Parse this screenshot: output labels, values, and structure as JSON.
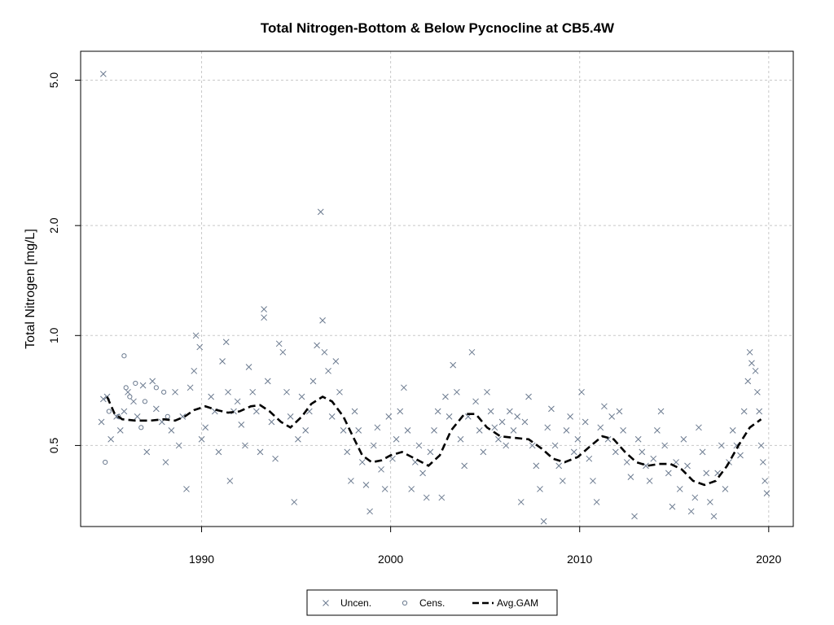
{
  "chart_data": {
    "type": "scatter",
    "title": "Total Nitrogen-Bottom & Below Pycnocline at CB5.4W",
    "xlabel": "",
    "ylabel": "Total Nitrogen [mg/L]",
    "y_scale": "log",
    "xlim": [
      1983.6,
      2021.3
    ],
    "ylim": [
      0.3,
      6.0
    ],
    "x_ticks": [
      1990,
      2000,
      2010,
      2020
    ],
    "y_ticks": [
      0.5,
      1.0,
      2.0,
      5.0
    ],
    "y_tick_labels": [
      "0.5",
      "1.0",
      "2.0",
      "5.0"
    ],
    "grid": true,
    "legend_position": "bottom-center",
    "legend": [
      "Uncen.",
      "Cens.",
      "Avg.GAM"
    ],
    "colors": {
      "points": "#6b7a8f",
      "line": "#000000",
      "grid": "#c8c8c8"
    },
    "series": [
      {
        "name": "Uncen.",
        "marker": "x",
        "points": [
          [
            1984.8,
            5.2
          ],
          [
            1984.8,
            0.67
          ],
          [
            1984.7,
            0.58
          ],
          [
            1985.0,
            0.68
          ],
          [
            1985.2,
            0.52
          ],
          [
            1985.5,
            0.6
          ],
          [
            1985.7,
            0.55
          ],
          [
            1985.9,
            0.62
          ],
          [
            1986.1,
            0.7
          ],
          [
            1986.4,
            0.66
          ],
          [
            1986.6,
            0.6
          ],
          [
            1986.9,
            0.73
          ],
          [
            1987.1,
            0.48
          ],
          [
            1987.4,
            0.75
          ],
          [
            1987.6,
            0.63
          ],
          [
            1987.9,
            0.58
          ],
          [
            1988.1,
            0.45
          ],
          [
            1988.4,
            0.55
          ],
          [
            1988.6,
            0.7
          ],
          [
            1988.8,
            0.5
          ],
          [
            1989.0,
            0.6
          ],
          [
            1989.2,
            0.38
          ],
          [
            1989.4,
            0.72
          ],
          [
            1989.6,
            0.8
          ],
          [
            1989.7,
            1.0
          ],
          [
            1989.9,
            0.93
          ],
          [
            1990.0,
            0.52
          ],
          [
            1990.2,
            0.56
          ],
          [
            1990.5,
            0.68
          ],
          [
            1990.7,
            0.62
          ],
          [
            1990.9,
            0.48
          ],
          [
            1991.1,
            0.85
          ],
          [
            1991.3,
            0.96
          ],
          [
            1991.4,
            0.7
          ],
          [
            1991.5,
            0.4
          ],
          [
            1991.7,
            0.62
          ],
          [
            1991.9,
            0.66
          ],
          [
            1992.1,
            0.57
          ],
          [
            1992.3,
            0.5
          ],
          [
            1992.5,
            0.82
          ],
          [
            1992.7,
            0.7
          ],
          [
            1992.9,
            0.62
          ],
          [
            1993.1,
            0.48
          ],
          [
            1993.3,
            1.18
          ],
          [
            1993.3,
            1.12
          ],
          [
            1993.5,
            0.75
          ],
          [
            1993.7,
            0.58
          ],
          [
            1993.9,
            0.46
          ],
          [
            1994.1,
            0.95
          ],
          [
            1994.3,
            0.9
          ],
          [
            1994.5,
            0.7
          ],
          [
            1994.7,
            0.6
          ],
          [
            1994.9,
            0.35
          ],
          [
            1995.1,
            0.52
          ],
          [
            1995.3,
            0.68
          ],
          [
            1995.5,
            0.55
          ],
          [
            1995.7,
            0.62
          ],
          [
            1995.9,
            0.75
          ],
          [
            1996.1,
            0.94
          ],
          [
            1996.3,
            2.18
          ],
          [
            1996.4,
            1.1
          ],
          [
            1996.5,
            0.9
          ],
          [
            1996.7,
            0.8
          ],
          [
            1996.9,
            0.6
          ],
          [
            1997.1,
            0.85
          ],
          [
            1997.3,
            0.7
          ],
          [
            1997.5,
            0.55
          ],
          [
            1997.7,
            0.48
          ],
          [
            1997.9,
            0.4
          ],
          [
            1998.1,
            0.62
          ],
          [
            1998.3,
            0.55
          ],
          [
            1998.5,
            0.45
          ],
          [
            1998.7,
            0.39
          ],
          [
            1998.9,
            0.33
          ],
          [
            1999.1,
            0.5
          ],
          [
            1999.3,
            0.56
          ],
          [
            1999.5,
            0.43
          ],
          [
            1999.7,
            0.38
          ],
          [
            1999.9,
            0.6
          ],
          [
            2000.1,
            0.46
          ],
          [
            2000.3,
            0.52
          ],
          [
            2000.5,
            0.62
          ],
          [
            2000.7,
            0.72
          ],
          [
            2000.9,
            0.55
          ],
          [
            2001.1,
            0.38
          ],
          [
            2001.3,
            0.45
          ],
          [
            2001.5,
            0.5
          ],
          [
            2001.7,
            0.42
          ],
          [
            2001.9,
            0.36
          ],
          [
            2002.1,
            0.48
          ],
          [
            2002.3,
            0.55
          ],
          [
            2002.5,
            0.62
          ],
          [
            2002.7,
            0.36
          ],
          [
            2002.9,
            0.68
          ],
          [
            2003.1,
            0.6
          ],
          [
            2003.3,
            0.83
          ],
          [
            2003.5,
            0.7
          ],
          [
            2003.7,
            0.52
          ],
          [
            2003.9,
            0.44
          ],
          [
            2004.1,
            0.6
          ],
          [
            2004.3,
            0.9
          ],
          [
            2004.5,
            0.66
          ],
          [
            2004.7,
            0.55
          ],
          [
            2004.9,
            0.48
          ],
          [
            2005.1,
            0.7
          ],
          [
            2005.3,
            0.62
          ],
          [
            2005.5,
            0.56
          ],
          [
            2005.7,
            0.52
          ],
          [
            2005.9,
            0.58
          ],
          [
            2006.1,
            0.5
          ],
          [
            2006.3,
            0.62
          ],
          [
            2006.5,
            0.55
          ],
          [
            2006.7,
            0.6
          ],
          [
            2006.9,
            0.35
          ],
          [
            2007.1,
            0.58
          ],
          [
            2007.3,
            0.68
          ],
          [
            2007.5,
            0.5
          ],
          [
            2007.7,
            0.44
          ],
          [
            2007.9,
            0.38
          ],
          [
            2008.1,
            0.31
          ],
          [
            2008.3,
            0.56
          ],
          [
            2008.5,
            0.63
          ],
          [
            2008.7,
            0.5
          ],
          [
            2008.9,
            0.44
          ],
          [
            2009.1,
            0.4
          ],
          [
            2009.3,
            0.55
          ],
          [
            2009.5,
            0.6
          ],
          [
            2009.7,
            0.48
          ],
          [
            2009.9,
            0.52
          ],
          [
            2010.1,
            0.7
          ],
          [
            2010.3,
            0.58
          ],
          [
            2010.5,
            0.46
          ],
          [
            2010.7,
            0.4
          ],
          [
            2010.9,
            0.35
          ],
          [
            2011.1,
            0.56
          ],
          [
            2011.3,
            0.64
          ],
          [
            2011.5,
            0.52
          ],
          [
            2011.7,
            0.6
          ],
          [
            2011.9,
            0.48
          ],
          [
            2012.1,
            0.62
          ],
          [
            2012.3,
            0.55
          ],
          [
            2012.5,
            0.45
          ],
          [
            2012.7,
            0.41
          ],
          [
            2012.9,
            0.32
          ],
          [
            2013.1,
            0.52
          ],
          [
            2013.3,
            0.48
          ],
          [
            2013.5,
            0.44
          ],
          [
            2013.7,
            0.4
          ],
          [
            2013.9,
            0.46
          ],
          [
            2014.1,
            0.55
          ],
          [
            2014.3,
            0.62
          ],
          [
            2014.5,
            0.5
          ],
          [
            2014.7,
            0.42
          ],
          [
            2014.9,
            0.34
          ],
          [
            2015.1,
            0.45
          ],
          [
            2015.3,
            0.38
          ],
          [
            2015.5,
            0.52
          ],
          [
            2015.7,
            0.44
          ],
          [
            2015.9,
            0.33
          ],
          [
            2016.1,
            0.36
          ],
          [
            2016.3,
            0.56
          ],
          [
            2016.5,
            0.48
          ],
          [
            2016.7,
            0.42
          ],
          [
            2016.9,
            0.35
          ],
          [
            2017.1,
            0.32
          ],
          [
            2017.3,
            0.42
          ],
          [
            2017.5,
            0.5
          ],
          [
            2017.7,
            0.38
          ],
          [
            2017.9,
            0.45
          ],
          [
            2018.1,
            0.55
          ],
          [
            2018.3,
            0.5
          ],
          [
            2018.5,
            0.47
          ],
          [
            2018.7,
            0.62
          ],
          [
            2018.9,
            0.75
          ],
          [
            2019.0,
            0.9
          ],
          [
            2019.1,
            0.84
          ],
          [
            2019.3,
            0.8
          ],
          [
            2019.4,
            0.7
          ],
          [
            2019.5,
            0.62
          ],
          [
            2019.6,
            0.5
          ],
          [
            2019.7,
            0.45
          ],
          [
            2019.8,
            0.4
          ],
          [
            2019.9,
            0.37
          ]
        ]
      },
      {
        "name": "Cens.",
        "marker": "o",
        "points": [
          [
            1984.9,
            0.45
          ],
          [
            1985.1,
            0.62
          ],
          [
            1985.6,
            0.6
          ],
          [
            1985.9,
            0.88
          ],
          [
            1986.0,
            0.72
          ],
          [
            1986.2,
            0.68
          ],
          [
            1986.5,
            0.74
          ],
          [
            1986.8,
            0.56
          ],
          [
            1987.0,
            0.66
          ],
          [
            1987.6,
            0.72
          ],
          [
            1988.0,
            0.7
          ],
          [
            1988.2,
            0.6
          ]
        ]
      },
      {
        "name": "Avg.GAM",
        "line_style": "dashed",
        "points": [
          [
            1985.0,
            0.68
          ],
          [
            1985.4,
            0.61
          ],
          [
            1985.8,
            0.59
          ],
          [
            1986.5,
            0.585
          ],
          [
            1987.3,
            0.585
          ],
          [
            1988.0,
            0.59
          ],
          [
            1988.6,
            0.585
          ],
          [
            1989.1,
            0.6
          ],
          [
            1989.6,
            0.625
          ],
          [
            1990.2,
            0.64
          ],
          [
            1990.8,
            0.625
          ],
          [
            1991.4,
            0.615
          ],
          [
            1992.0,
            0.62
          ],
          [
            1992.6,
            0.64
          ],
          [
            1993.1,
            0.645
          ],
          [
            1993.6,
            0.62
          ],
          [
            1994.2,
            0.58
          ],
          [
            1994.7,
            0.56
          ],
          [
            1995.3,
            0.6
          ],
          [
            1995.8,
            0.65
          ],
          [
            1996.4,
            0.68
          ],
          [
            1996.9,
            0.66
          ],
          [
            1997.5,
            0.6
          ],
          [
            1998.0,
            0.53
          ],
          [
            1998.5,
            0.47
          ],
          [
            1999.0,
            0.45
          ],
          [
            1999.5,
            0.455
          ],
          [
            2000.0,
            0.47
          ],
          [
            2000.6,
            0.48
          ],
          [
            2001.3,
            0.46
          ],
          [
            2002.0,
            0.44
          ],
          [
            2002.6,
            0.47
          ],
          [
            2003.2,
            0.55
          ],
          [
            2003.9,
            0.61
          ],
          [
            2004.5,
            0.61
          ],
          [
            2005.1,
            0.56
          ],
          [
            2005.8,
            0.53
          ],
          [
            2006.5,
            0.525
          ],
          [
            2007.3,
            0.52
          ],
          [
            2008.0,
            0.49
          ],
          [
            2008.6,
            0.46
          ],
          [
            2009.2,
            0.45
          ],
          [
            2009.9,
            0.465
          ],
          [
            2010.6,
            0.5
          ],
          [
            2011.2,
            0.53
          ],
          [
            2011.8,
            0.52
          ],
          [
            2012.4,
            0.48
          ],
          [
            2013.0,
            0.45
          ],
          [
            2013.6,
            0.44
          ],
          [
            2014.2,
            0.445
          ],
          [
            2014.8,
            0.445
          ],
          [
            2015.4,
            0.43
          ],
          [
            2016.0,
            0.4
          ],
          [
            2016.6,
            0.39
          ],
          [
            2017.2,
            0.4
          ],
          [
            2017.8,
            0.44
          ],
          [
            2018.4,
            0.5
          ],
          [
            2019.0,
            0.56
          ],
          [
            2019.6,
            0.59
          ]
        ]
      }
    ]
  }
}
